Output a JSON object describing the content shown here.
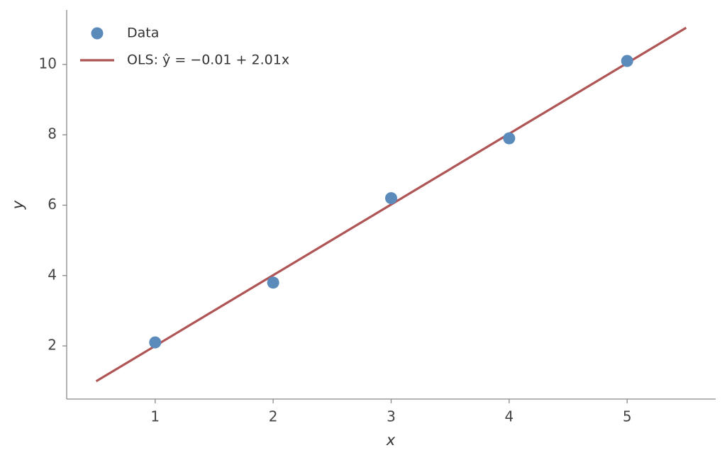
{
  "chart_data": {
    "type": "scatter",
    "x_label": "x",
    "y_label": "y",
    "series": [
      {
        "name": "Data",
        "type": "scatter",
        "color": "#5b8bbb",
        "x": [
          1,
          2,
          3,
          4,
          5
        ],
        "values": [
          2.1,
          3.8,
          6.2,
          7.9,
          10.1
        ]
      },
      {
        "name": "OLS: ŷ = −0.01 + 2.01x",
        "type": "line",
        "color": "#b05555",
        "x": [
          0.5,
          5.5
        ],
        "values": [
          0.995,
          11.045
        ]
      }
    ],
    "xlim": [
      0.25,
      5.75
    ],
    "ylim": [
      0.49,
      11.55
    ],
    "xticks": [
      1,
      2,
      3,
      4,
      5
    ],
    "yticks": [
      2,
      4,
      6,
      8,
      10
    ],
    "grid": false,
    "legend": "upper left"
  }
}
